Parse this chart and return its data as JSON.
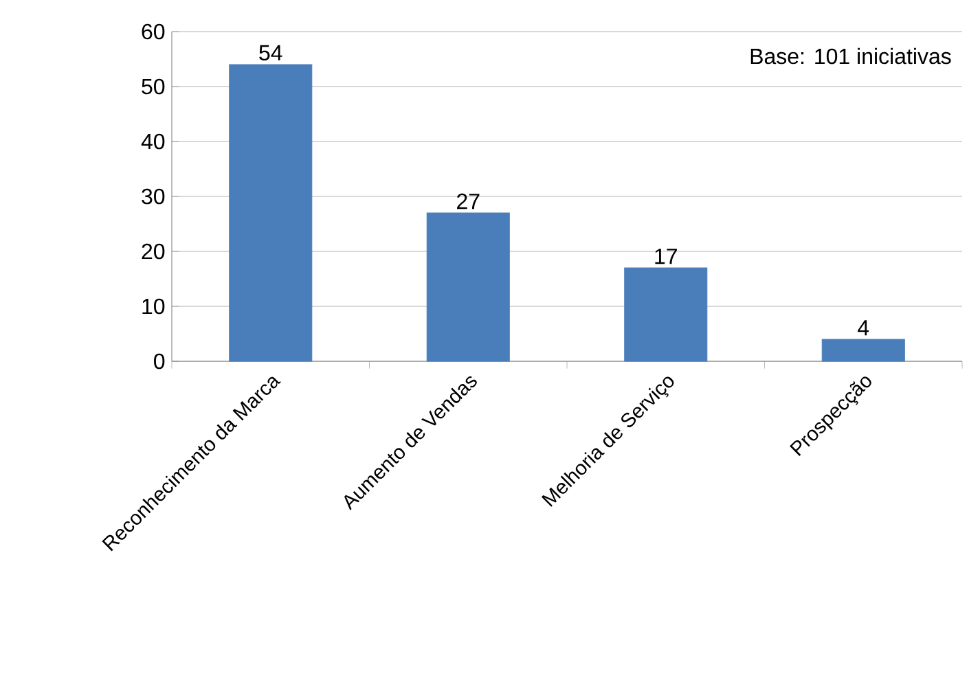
{
  "chart_data": {
    "type": "bar",
    "categories": [
      "Reconhecimento da Marca",
      "Aumento de Vendas",
      "Melhoria de Serviço",
      "Prospecção"
    ],
    "values": [
      54,
      27,
      17,
      4
    ],
    "color": "#4a7ebb",
    "ylim": [
      0,
      60
    ],
    "yticks": [
      0,
      10,
      20,
      30,
      40,
      50,
      60
    ],
    "grid": "y",
    "data_labels": true,
    "annotations": [
      "Base: 101 iniciativas"
    ]
  }
}
